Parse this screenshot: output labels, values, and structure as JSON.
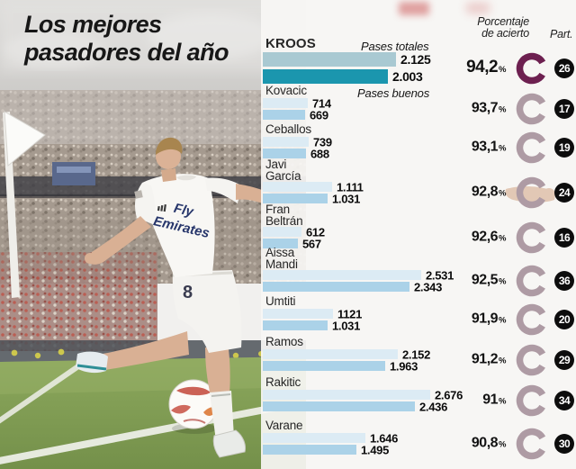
{
  "title": {
    "line1": "Los mejores",
    "line2": "pasadores del año"
  },
  "photo": {
    "jersey_sponsor_line1": "Fly",
    "jersey_sponsor_line2": "Emirates",
    "shorts_number": "8"
  },
  "chart": {
    "headers": {
      "accuracy_line1": "Porcentaje",
      "accuracy_line2": "de acierto",
      "participation": "Part.",
      "total_passes": "Pases totales",
      "good_passes": "Pases buenos",
      "percent_sign": "%"
    }
  },
  "rows": [
    {
      "name_lines": [
        "KROOS"
      ],
      "total": "2.125",
      "total_value": 2125,
      "good": "2.003",
      "good_value": 2003,
      "pct": "94,2",
      "part": "26",
      "highlight": true
    },
    {
      "name_lines": [
        "Kovacic"
      ],
      "total": "714",
      "total_value": 714,
      "good": "669",
      "good_value": 669,
      "pct": "93,7",
      "part": "17",
      "highlight": false
    },
    {
      "name_lines": [
        "Ceballos"
      ],
      "total": "739",
      "total_value": 739,
      "good": "688",
      "good_value": 688,
      "pct": "93,1",
      "part": "19",
      "highlight": false
    },
    {
      "name_lines": [
        "Javi",
        "García"
      ],
      "total": "1.111",
      "total_value": 1111,
      "good": "1.031",
      "good_value": 1031,
      "pct": "92,8",
      "part": "24",
      "highlight": false
    },
    {
      "name_lines": [
        "Fran",
        "Beltrán"
      ],
      "total": "612",
      "total_value": 612,
      "good": "567",
      "good_value": 567,
      "pct": "92,6",
      "part": "16",
      "highlight": false
    },
    {
      "name_lines": [
        "Aissa",
        "Mandi"
      ],
      "total": "2.531",
      "total_value": 2531,
      "good": "2.343",
      "good_value": 2343,
      "pct": "92,5",
      "part": "36",
      "highlight": false
    },
    {
      "name_lines": [
        "Umtiti"
      ],
      "total": "1121",
      "total_value": 1121,
      "good": "1.031",
      "good_value": 1031,
      "pct": "91,9",
      "part": "20",
      "highlight": false
    },
    {
      "name_lines": [
        "Ramos"
      ],
      "total": "2.152",
      "total_value": 2152,
      "good": "1.963",
      "good_value": 1963,
      "pct": "91,2",
      "part": "29",
      "highlight": false
    },
    {
      "name_lines": [
        "Rakitic"
      ],
      "total": "2.676",
      "total_value": 2676,
      "good": "2.436",
      "good_value": 2436,
      "pct": "91",
      "part": "34",
      "highlight": false
    },
    {
      "name_lines": [
        "Varane"
      ],
      "total": "1.646",
      "total_value": 1646,
      "good": "1.495",
      "good_value": 1495,
      "pct": "90,8",
      "part": "30",
      "highlight": false
    }
  ],
  "colors": {
    "bar_total": "#dcebf4",
    "bar_good": "#abd2e8",
    "bar_total_highlight": "#a9c9d2",
    "bar_good_highlight": "#1b96ae",
    "donut_light": "#ae9ba4",
    "donut_dark": "#6d2050",
    "badge_bg": "#0d0d0d",
    "red_blob": "#c84b4b"
  },
  "chart_data": {
    "type": "bar",
    "orientation": "horizontal",
    "title": "Los mejores pasadores del año",
    "categories": [
      "Kroos",
      "Kovacic",
      "Ceballos",
      "Javi García",
      "Fran Beltrán",
      "Aissa Mandi",
      "Umtiti",
      "Ramos",
      "Rakitic",
      "Varane"
    ],
    "series": [
      {
        "name": "Pases totales",
        "values": [
          2125,
          714,
          739,
          1111,
          612,
          2531,
          1121,
          2152,
          2676,
          1646
        ]
      },
      {
        "name": "Pases buenos",
        "values": [
          2003,
          669,
          688,
          1031,
          567,
          2343,
          1031,
          1963,
          2436,
          1495
        ]
      }
    ],
    "accuracy_percent": [
      94.2,
      93.7,
      93.1,
      92.8,
      92.6,
      92.5,
      91.9,
      91.2,
      91,
      90.8
    ],
    "participation": [
      26,
      17,
      19,
      24,
      16,
      36,
      20,
      29,
      34,
      30
    ],
    "xlim": [
      0,
      2676
    ],
    "grid": false,
    "legend": [
      "Pases totales",
      "Pases buenos"
    ],
    "legend_position": "inline-first-rows",
    "highlighted_category": "Kroos"
  }
}
